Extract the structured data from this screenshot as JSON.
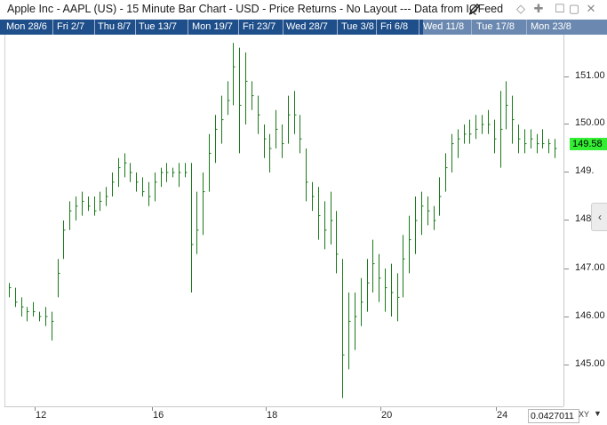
{
  "window": {
    "title": "Apple Inc - AAPL (US) - 15 Minute Bar Chart - USD - Price Returns - No Layout --- Data from IQFeed"
  },
  "time_bar": {
    "labels": [
      "Mon 28/6",
      "Fri 2/7",
      "Thu 8/7",
      "Tue 13/7",
      "Mon 19/7",
      "Fri 23/7",
      "Wed 28/7",
      "Tue 3/8",
      "Fri 6/8",
      "Wed 11/8",
      "Tue 17/8",
      "Mon 23/8"
    ]
  },
  "price_axis": {
    "labels": [
      "151.00",
      "150.00",
      "149.",
      "148.",
      "147.00",
      "146.00",
      "145.00"
    ],
    "last_price": "149.58"
  },
  "time_axis": {
    "labels": [
      "12",
      "16",
      "18",
      "20",
      "24"
    ]
  },
  "footer": {
    "value_box": "0.0427011",
    "xy_label": "XY",
    "xy_arrow": "▼"
  },
  "colors": {
    "bar": "#1a7a1a",
    "last_price_tag": "#33ee33",
    "time_bar_bg": "#1f4f8a"
  },
  "chart_data": {
    "type": "bar",
    "title": "",
    "ylim": [
      144.2,
      151.8
    ],
    "x_categories": [
      "12",
      "16",
      "18",
      "20",
      "24"
    ],
    "series": [
      {
        "values": [
          [
            146.4,
            146.7,
            146.6
          ],
          [
            146.2,
            146.6,
            146.3
          ],
          [
            146.0,
            146.4,
            146.2
          ],
          [
            145.9,
            146.2,
            146.1
          ],
          [
            146.0,
            146.3,
            146.1
          ],
          [
            145.9,
            146.1,
            146.0
          ],
          [
            145.8,
            146.2,
            146.0
          ],
          [
            145.5,
            146.1,
            145.9
          ],
          [
            146.4,
            147.2,
            146.9
          ],
          [
            147.2,
            148.0,
            147.8
          ],
          [
            147.8,
            148.4,
            148.2
          ],
          [
            148.0,
            148.5,
            148.3
          ],
          [
            148.1,
            148.6,
            148.4
          ],
          [
            148.2,
            148.5,
            148.3
          ],
          [
            148.1,
            148.5,
            148.2
          ],
          [
            148.2,
            148.6,
            148.4
          ],
          [
            148.3,
            148.7,
            148.5
          ],
          [
            148.5,
            149.0,
            148.8
          ],
          [
            148.7,
            149.3,
            149.1
          ],
          [
            148.9,
            149.4,
            149.2
          ],
          [
            148.8,
            149.2,
            149.0
          ],
          [
            148.6,
            149.0,
            148.8
          ],
          [
            148.5,
            148.9,
            148.6
          ],
          [
            148.3,
            148.8,
            148.5
          ],
          [
            148.4,
            149.0,
            148.8
          ],
          [
            148.7,
            149.1,
            149.0
          ],
          [
            148.8,
            149.2,
            149.0
          ],
          [
            148.9,
            149.1,
            149.0
          ],
          [
            148.7,
            149.2,
            149.0
          ],
          [
            148.9,
            149.2,
            149.0
          ],
          [
            146.5,
            149.2,
            147.5
          ],
          [
            147.3,
            148.6,
            147.8
          ],
          [
            147.7,
            149.0,
            148.6
          ],
          [
            148.6,
            149.8,
            149.4
          ],
          [
            149.2,
            150.2,
            149.9
          ],
          [
            149.6,
            150.6,
            150.1
          ],
          [
            150.2,
            150.9,
            150.5
          ],
          [
            150.4,
            151.7,
            151.2
          ],
          [
            149.4,
            151.6,
            150.4
          ],
          [
            150.0,
            151.5,
            150.9
          ],
          [
            150.3,
            150.9,
            150.6
          ],
          [
            149.8,
            150.6,
            150.2
          ],
          [
            149.3,
            150.0,
            149.7
          ],
          [
            149.0,
            149.8,
            149.5
          ],
          [
            149.5,
            150.3,
            149.9
          ],
          [
            149.3,
            150.0,
            149.6
          ],
          [
            149.6,
            150.6,
            150.2
          ],
          [
            149.8,
            150.7,
            150.2
          ],
          [
            149.4,
            150.2,
            149.7
          ],
          [
            148.4,
            149.5,
            148.8
          ],
          [
            148.2,
            148.8,
            148.5
          ],
          [
            147.6,
            148.7,
            148.1
          ],
          [
            147.4,
            148.4,
            147.8
          ],
          [
            147.5,
            148.6,
            148.0
          ],
          [
            146.9,
            148.2,
            147.3
          ],
          [
            144.3,
            147.2,
            145.2
          ],
          [
            144.9,
            146.5,
            145.9
          ],
          [
            145.3,
            146.5,
            146.0
          ],
          [
            145.8,
            146.8,
            146.3
          ],
          [
            146.1,
            147.2,
            146.7
          ],
          [
            146.5,
            147.6,
            147.1
          ],
          [
            146.3,
            147.3,
            146.8
          ],
          [
            146.1,
            147.0,
            146.6
          ],
          [
            146.0,
            147.1,
            146.5
          ],
          [
            145.9,
            146.9,
            146.4
          ],
          [
            146.4,
            147.7,
            147.2
          ],
          [
            146.9,
            148.1,
            147.6
          ],
          [
            147.3,
            148.5,
            148.0
          ],
          [
            147.7,
            148.6,
            148.3
          ],
          [
            147.9,
            148.5,
            148.2
          ],
          [
            147.8,
            148.3,
            148.0
          ],
          [
            148.1,
            148.9,
            148.5
          ],
          [
            148.6,
            149.4,
            149.1
          ],
          [
            149.0,
            149.8,
            149.6
          ],
          [
            149.3,
            149.9,
            149.7
          ],
          [
            149.6,
            150.0,
            149.8
          ],
          [
            149.6,
            150.1,
            149.8
          ],
          [
            149.7,
            150.2,
            149.9
          ],
          [
            149.8,
            150.2,
            150.0
          ],
          [
            149.8,
            150.3,
            150.0
          ],
          [
            149.4,
            150.1,
            149.7
          ],
          [
            149.1,
            150.7,
            149.9
          ],
          [
            149.9,
            150.9,
            150.4
          ],
          [
            149.6,
            150.6,
            150.1
          ],
          [
            149.4,
            150.0,
            149.7
          ],
          [
            149.4,
            149.9,
            149.6
          ],
          [
            149.5,
            149.9,
            149.7
          ],
          [
            149.4,
            149.8,
            149.6
          ],
          [
            149.5,
            149.9,
            149.6
          ],
          [
            149.4,
            149.7,
            149.6
          ],
          [
            149.3,
            149.7,
            149.5
          ]
        ]
      }
    ]
  }
}
